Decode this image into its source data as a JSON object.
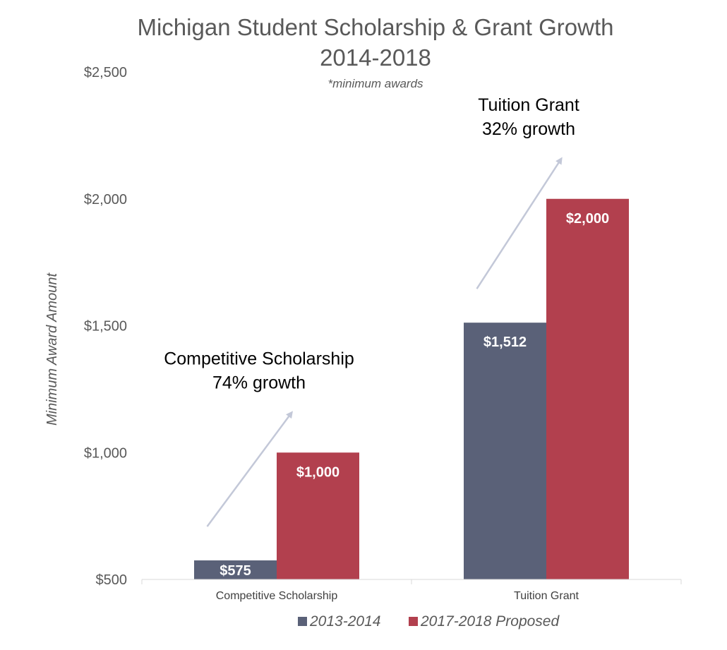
{
  "chart_data": {
    "type": "bar",
    "title": "Michigan Student Scholarship & Grant Growth",
    "title_line2": "2014-2018",
    "subtitle": "*minimum awards",
    "ylabel": "Minimum Award Amount",
    "xlabel": "",
    "categories": [
      "Competitive Scholarship",
      "Tuition Grant"
    ],
    "series": [
      {
        "name": "2013-2014",
        "color": "#5a6178",
        "values": [
          575,
          1512
        ],
        "labels": [
          "$575",
          "$1,512"
        ]
      },
      {
        "name": "2017-2018 Proposed",
        "color": "#b2404e",
        "values": [
          1000,
          2000
        ],
        "labels": [
          "$1,000",
          "$2,000"
        ]
      }
    ],
    "ylim": [
      500,
      2500
    ],
    "yticks": [
      {
        "value": 500,
        "label": "$500"
      },
      {
        "value": 1000,
        "label": "$1,000"
      },
      {
        "value": 1500,
        "label": "$1,500"
      },
      {
        "value": 2000,
        "label": "$2,000"
      },
      {
        "value": 2500,
        "label": "$2,500"
      }
    ],
    "grid": false,
    "legend_position": "bottom",
    "annotations": [
      {
        "category": "Competitive Scholarship",
        "lines": [
          "Competitive Scholarship",
          "74% growth"
        ]
      },
      {
        "category": "Tuition Grant",
        "lines": [
          "Tuition Grant",
          "32% growth"
        ]
      }
    ],
    "arrow_color": "#c3c8d8"
  }
}
